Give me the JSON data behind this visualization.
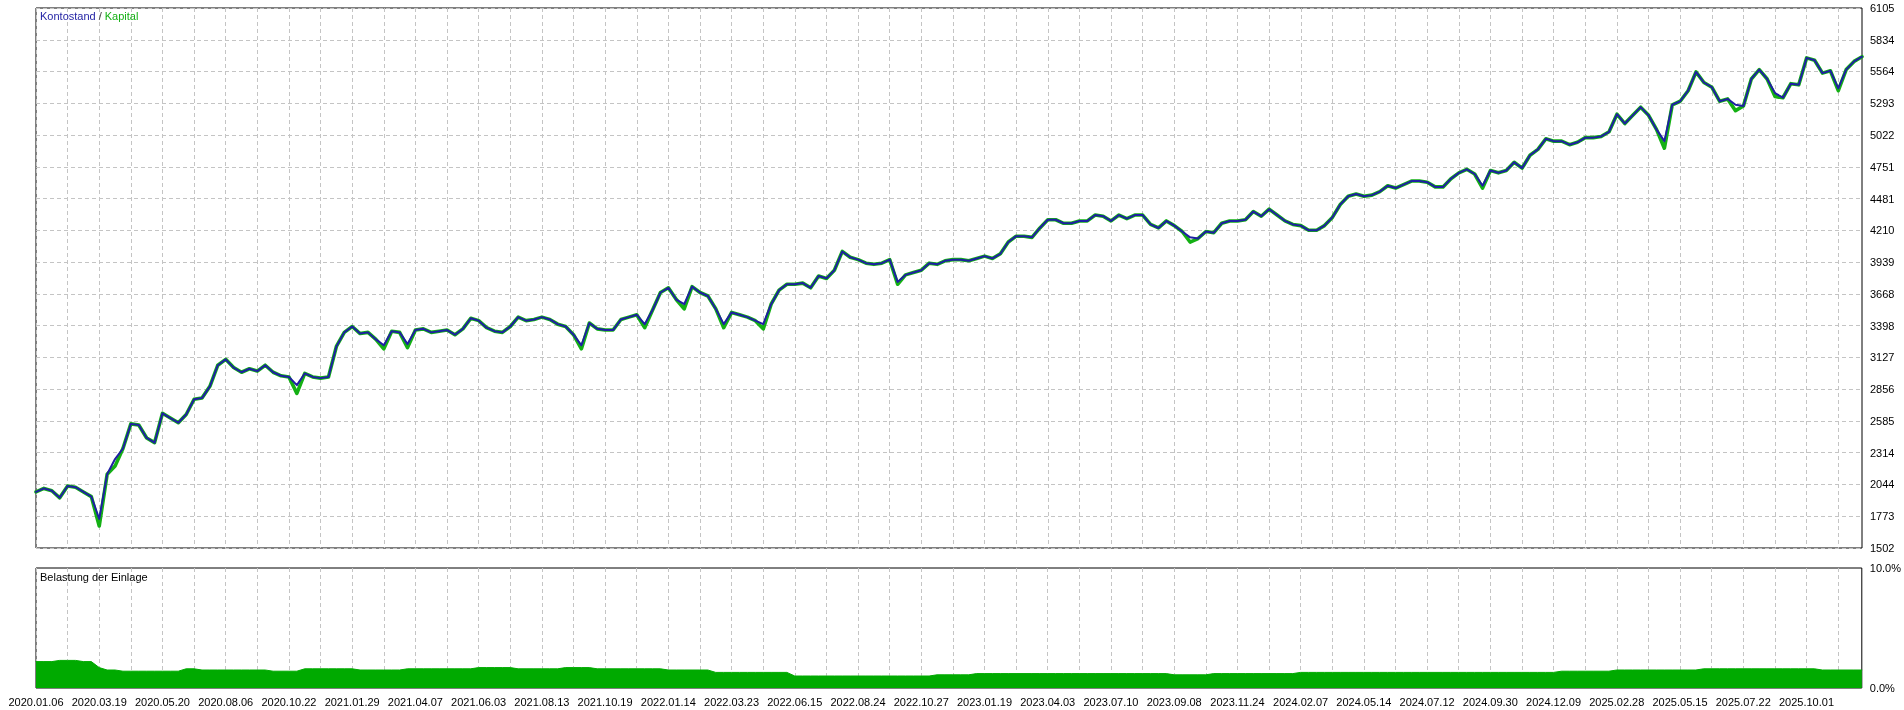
{
  "chart_data": [
    {
      "type": "line",
      "legend": "top left",
      "annotations": [
        "/"
      ],
      "grid": true,
      "tick_labels": "y",
      "marker": "none",
      "ylim": [
        1502,
        6105
      ],
      "yticks": [
        1502,
        1773,
        2044,
        2314,
        2585,
        2856,
        3127,
        3398,
        3668,
        3939,
        4210,
        4481,
        4751,
        5022,
        5293,
        5564,
        5834,
        6105
      ],
      "categories": [
        "2020.01.06",
        null,
        null,
        null,
        null,
        null,
        null,
        null,
        "2020.03.19",
        null,
        null,
        null,
        null,
        null,
        null,
        null,
        "2020.05.20",
        null,
        null,
        null,
        null,
        null,
        null,
        null,
        "2020.08.06",
        null,
        null,
        null,
        null,
        null,
        null,
        null,
        "2020.10.22",
        null,
        null,
        null,
        null,
        null,
        null,
        null,
        "2021.01.29",
        null,
        null,
        null,
        null,
        null,
        null,
        null,
        "2021.04.07",
        null,
        null,
        null,
        null,
        null,
        null,
        null,
        "2021.06.03",
        null,
        null,
        null,
        null,
        null,
        null,
        null,
        "2021.08.13",
        null,
        null,
        null,
        null,
        null,
        null,
        null,
        "2021.10.19",
        null,
        null,
        null,
        null,
        null,
        null,
        null,
        "2022.01.14",
        null,
        null,
        null,
        null,
        null,
        null,
        null,
        "2022.03.23",
        null,
        null,
        null,
        null,
        null,
        null,
        null,
        "2022.06.15",
        null,
        null,
        null,
        null,
        null,
        null,
        null,
        "2022.08.24",
        null,
        null,
        null,
        null,
        null,
        null,
        null,
        "2022.10.27",
        null,
        null,
        null,
        null,
        null,
        null,
        null,
        "2023.01.19",
        null,
        null,
        null,
        null,
        null,
        null,
        null,
        "2023.04.03",
        null,
        null,
        null,
        null,
        null,
        null,
        null,
        "2023.07.10",
        null,
        null,
        null,
        null,
        null,
        null,
        null,
        "2023.09.08",
        null,
        null,
        null,
        null,
        null,
        null,
        null,
        "2023.11.24",
        null,
        null,
        null,
        null,
        null,
        null,
        null,
        "2024.02.07",
        null,
        null,
        null,
        null,
        null,
        null,
        null,
        "2024.05.14",
        null,
        null,
        null,
        null,
        null,
        null,
        null,
        "2024.07.12",
        null,
        null,
        null,
        null,
        null,
        null,
        null,
        "2024.09.30",
        null,
        null,
        null,
        null,
        null,
        null,
        null,
        "2024.12.09",
        null,
        null,
        null,
        null,
        null,
        null,
        null,
        "2025.02.28",
        null,
        null,
        null,
        null,
        null,
        null,
        null,
        "2025.05.15",
        null,
        null,
        null,
        null,
        null,
        null,
        null,
        "2025.07.22",
        null,
        null,
        null,
        null,
        null,
        null,
        null,
        "2025.10.01",
        null,
        null,
        null,
        null,
        null,
        null,
        null
      ],
      "series": [
        {
          "name": "Kontostand",
          "color": "#1f1fa3",
          "values": [
            1980,
            2010,
            1990,
            1930,
            2030,
            2020,
            1980,
            1940,
            1750,
            2130,
            2260,
            2350,
            2560,
            2550,
            2440,
            2400,
            2650,
            2610,
            2570,
            2640,
            2770,
            2780,
            2880,
            3060,
            3110,
            3040,
            3000,
            3030,
            3010,
            3060,
            3000,
            2970,
            2960,
            2890,
            2990,
            2960,
            2950,
            2960,
            3220,
            3340,
            3390,
            3330,
            3340,
            3280,
            3230,
            3350,
            3340,
            3240,
            3360,
            3370,
            3340,
            3350,
            3360,
            3320,
            3370,
            3460,
            3440,
            3380,
            3350,
            3340,
            3390,
            3470,
            3440,
            3450,
            3470,
            3450,
            3410,
            3390,
            3320,
            3230,
            3420,
            3370,
            3360,
            3360,
            3450,
            3470,
            3490,
            3410,
            3530,
            3680,
            3720,
            3620,
            3580,
            3730,
            3680,
            3650,
            3540,
            3410,
            3510,
            3490,
            3470,
            3440,
            3410,
            3580,
            3700,
            3750,
            3750,
            3760,
            3720,
            3820,
            3800,
            3870,
            4030,
            3980,
            3960,
            3930,
            3920,
            3930,
            3960,
            3770,
            3830,
            3850,
            3870,
            3930,
            3920,
            3950,
            3960,
            3960,
            3950,
            3970,
            3990,
            3970,
            4010,
            4110,
            4160,
            4160,
            4150,
            4230,
            4300,
            4300,
            4270,
            4270,
            4290,
            4290,
            4340,
            4330,
            4290,
            4340,
            4310,
            4340,
            4340,
            4260,
            4230,
            4290,
            4250,
            4200,
            4150,
            4140,
            4200,
            4190,
            4270,
            4290,
            4290,
            4300,
            4370,
            4330,
            4390,
            4340,
            4290,
            4260,
            4250,
            4210,
            4210,
            4250,
            4320,
            4430,
            4500,
            4520,
            4500,
            4510,
            4540,
            4590,
            4570,
            4600,
            4630,
            4630,
            4620,
            4580,
            4580,
            4650,
            4700,
            4730,
            4690,
            4590,
            4720,
            4700,
            4720,
            4790,
            4740,
            4850,
            4900,
            4990,
            4970,
            4970,
            4940,
            4960,
            5000,
            5000,
            5010,
            5050,
            5200,
            5120,
            5190,
            5260,
            5190,
            5070,
            4970,
            5280,
            5310,
            5400,
            5560,
            5470,
            5430,
            5310,
            5330,
            5280,
            5270,
            5500,
            5580,
            5500,
            5380,
            5340,
            5460,
            5450,
            5680,
            5660,
            5550,
            5570,
            5420,
            5580,
            5650,
            5690
          ]
        },
        {
          "name": "Kapital",
          "color": "#14b014",
          "values": [
            1980,
            2010,
            1990,
            1930,
            2030,
            2020,
            1980,
            1940,
            1690,
            2130,
            2200,
            2350,
            2560,
            2550,
            2440,
            2400,
            2650,
            2610,
            2570,
            2640,
            2770,
            2780,
            2880,
            3060,
            3110,
            3040,
            3000,
            3030,
            3010,
            3060,
            3000,
            2970,
            2960,
            2820,
            2990,
            2960,
            2950,
            2960,
            3220,
            3340,
            3390,
            3330,
            3340,
            3280,
            3200,
            3350,
            3340,
            3210,
            3360,
            3370,
            3340,
            3350,
            3360,
            3320,
            3370,
            3460,
            3440,
            3380,
            3350,
            3340,
            3390,
            3470,
            3440,
            3450,
            3470,
            3450,
            3410,
            3390,
            3320,
            3200,
            3420,
            3370,
            3360,
            3360,
            3450,
            3470,
            3490,
            3380,
            3530,
            3680,
            3720,
            3620,
            3540,
            3730,
            3680,
            3650,
            3540,
            3380,
            3510,
            3490,
            3470,
            3440,
            3370,
            3580,
            3700,
            3750,
            3750,
            3760,
            3720,
            3820,
            3800,
            3870,
            4030,
            3980,
            3960,
            3930,
            3920,
            3930,
            3960,
            3750,
            3830,
            3850,
            3870,
            3930,
            3920,
            3950,
            3960,
            3960,
            3950,
            3970,
            3990,
            3970,
            4010,
            4110,
            4160,
            4160,
            4150,
            4230,
            4300,
            4300,
            4270,
            4270,
            4290,
            4290,
            4340,
            4330,
            4290,
            4340,
            4310,
            4340,
            4340,
            4260,
            4230,
            4290,
            4250,
            4200,
            4110,
            4140,
            4200,
            4190,
            4270,
            4290,
            4290,
            4300,
            4370,
            4330,
            4390,
            4340,
            4290,
            4260,
            4250,
            4210,
            4210,
            4250,
            4320,
            4430,
            4500,
            4520,
            4500,
            4510,
            4540,
            4590,
            4570,
            4600,
            4630,
            4630,
            4620,
            4580,
            4580,
            4650,
            4700,
            4730,
            4690,
            4570,
            4720,
            4700,
            4720,
            4790,
            4740,
            4850,
            4900,
            4990,
            4970,
            4970,
            4940,
            4960,
            5000,
            5000,
            5010,
            5050,
            5200,
            5120,
            5190,
            5260,
            5190,
            5070,
            4910,
            5280,
            5310,
            5400,
            5560,
            5470,
            5430,
            5310,
            5330,
            5230,
            5270,
            5500,
            5580,
            5500,
            5350,
            5340,
            5460,
            5450,
            5680,
            5660,
            5550,
            5570,
            5400,
            5580,
            5650,
            5690
          ]
        }
      ]
    },
    {
      "type": "area",
      "title": "Belastung der Einlage",
      "grid": "x",
      "marker": "none",
      "color": "#00aa00",
      "ylim": [
        0,
        10
      ],
      "yticks": [
        {
          "value": 0,
          "label": "0.0%"
        },
        {
          "value": 10,
          "label": "10.0%"
        }
      ],
      "categories": [
        "2020.01.06",
        null,
        null,
        null,
        null,
        null,
        null,
        null,
        "2020.03.19",
        null,
        null,
        null,
        null,
        null,
        null,
        null,
        "2020.05.20",
        null,
        null,
        null,
        null,
        null,
        null,
        null,
        "2020.08.06",
        null,
        null,
        null,
        null,
        null,
        null,
        null,
        "2020.10.22",
        null,
        null,
        null,
        null,
        null,
        null,
        null,
        "2021.01.29",
        null,
        null,
        null,
        null,
        null,
        null,
        null,
        "2021.04.07",
        null,
        null,
        null,
        null,
        null,
        null,
        null,
        "2021.06.03",
        null,
        null,
        null,
        null,
        null,
        null,
        null,
        "2021.08.13",
        null,
        null,
        null,
        null,
        null,
        null,
        null,
        "2021.10.19",
        null,
        null,
        null,
        null,
        null,
        null,
        null,
        "2022.01.14",
        null,
        null,
        null,
        null,
        null,
        null,
        null,
        "2022.03.23",
        null,
        null,
        null,
        null,
        null,
        null,
        null,
        "2022.06.15",
        null,
        null,
        null,
        null,
        null,
        null,
        null,
        "2022.08.24",
        null,
        null,
        null,
        null,
        null,
        null,
        null,
        "2022.10.27",
        null,
        null,
        null,
        null,
        null,
        null,
        null,
        "2023.01.19",
        null,
        null,
        null,
        null,
        null,
        null,
        null,
        "2023.04.03",
        null,
        null,
        null,
        null,
        null,
        null,
        null,
        "2023.07.10",
        null,
        null,
        null,
        null,
        null,
        null,
        null,
        "2023.09.08",
        null,
        null,
        null,
        null,
        null,
        null,
        null,
        "2023.11.24",
        null,
        null,
        null,
        null,
        null,
        null,
        null,
        "2024.02.07",
        null,
        null,
        null,
        null,
        null,
        null,
        null,
        "2024.05.14",
        null,
        null,
        null,
        null,
        null,
        null,
        null,
        "2024.07.12",
        null,
        null,
        null,
        null,
        null,
        null,
        null,
        "2024.09.30",
        null,
        null,
        null,
        null,
        null,
        null,
        null,
        "2024.12.09",
        null,
        null,
        null,
        null,
        null,
        null,
        null,
        "2025.02.28",
        null,
        null,
        null,
        null,
        null,
        null,
        null,
        "2025.05.15",
        null,
        null,
        null,
        null,
        null,
        null,
        null,
        "2025.07.22",
        null,
        null,
        null,
        null,
        null,
        null,
        null,
        "2025.10.01",
        null,
        null,
        null,
        null,
        null,
        null,
        null
      ],
      "values": [
        2.2,
        2.2,
        2.2,
        2.3,
        2.3,
        2.3,
        2.2,
        2.2,
        1.7,
        1.5,
        1.5,
        1.4,
        1.4,
        1.4,
        1.4,
        1.4,
        1.4,
        1.4,
        1.4,
        1.6,
        1.6,
        1.5,
        1.5,
        1.5,
        1.5,
        1.5,
        1.5,
        1.5,
        1.5,
        1.5,
        1.4,
        1.4,
        1.4,
        1.4,
        1.6,
        1.6,
        1.6,
        1.6,
        1.6,
        1.6,
        1.6,
        1.5,
        1.5,
        1.5,
        1.5,
        1.5,
        1.5,
        1.6,
        1.6,
        1.6,
        1.6,
        1.6,
        1.6,
        1.6,
        1.6,
        1.6,
        1.7,
        1.7,
        1.7,
        1.7,
        1.7,
        1.6,
        1.6,
        1.6,
        1.6,
        1.6,
        1.6,
        1.7,
        1.7,
        1.7,
        1.7,
        1.6,
        1.6,
        1.6,
        1.6,
        1.6,
        1.6,
        1.6,
        1.6,
        1.6,
        1.5,
        1.5,
        1.5,
        1.5,
        1.5,
        1.5,
        1.3,
        1.3,
        1.3,
        1.3,
        1.3,
        1.3,
        1.3,
        1.3,
        1.3,
        1.3,
        1.0,
        1.0,
        1.0,
        1.0,
        1.0,
        1.0,
        1.0,
        1.0,
        1.0,
        1.0,
        1.0,
        1.0,
        1.0,
        1.0,
        1.0,
        1.0,
        1.0,
        1.0,
        1.1,
        1.1,
        1.1,
        1.1,
        1.1,
        1.2,
        1.2,
        1.2,
        1.2,
        1.2,
        1.2,
        1.2,
        1.2,
        1.2,
        1.2,
        1.2,
        1.2,
        1.2,
        1.2,
        1.2,
        1.2,
        1.2,
        1.2,
        1.2,
        1.2,
        1.2,
        1.2,
        1.2,
        1.2,
        1.2,
        1.1,
        1.1,
        1.1,
        1.1,
        1.1,
        1.2,
        1.2,
        1.2,
        1.2,
        1.2,
        1.2,
        1.2,
        1.2,
        1.2,
        1.2,
        1.2,
        1.3,
        1.3,
        1.3,
        1.3,
        1.3,
        1.3,
        1.3,
        1.3,
        1.3,
        1.3,
        1.3,
        1.3,
        1.3,
        1.3,
        1.3,
        1.3,
        1.3,
        1.3,
        1.3,
        1.3,
        1.3,
        1.3,
        1.3,
        1.3,
        1.3,
        1.3,
        1.3,
        1.3,
        1.3,
        1.3,
        1.3,
        1.3,
        1.3,
        1.4,
        1.4,
        1.4,
        1.4,
        1.4,
        1.4,
        1.4,
        1.5,
        1.5,
        1.5,
        1.5,
        1.5,
        1.5,
        1.5,
        1.5,
        1.5,
        1.5,
        1.5,
        1.6,
        1.6,
        1.6,
        1.6,
        1.6,
        1.6,
        1.6,
        1.6,
        1.6,
        1.6,
        1.6,
        1.6,
        1.6,
        1.6,
        1.6,
        1.5,
        1.5,
        1.5,
        1.5,
        1.5,
        1.5
      ]
    }
  ]
}
